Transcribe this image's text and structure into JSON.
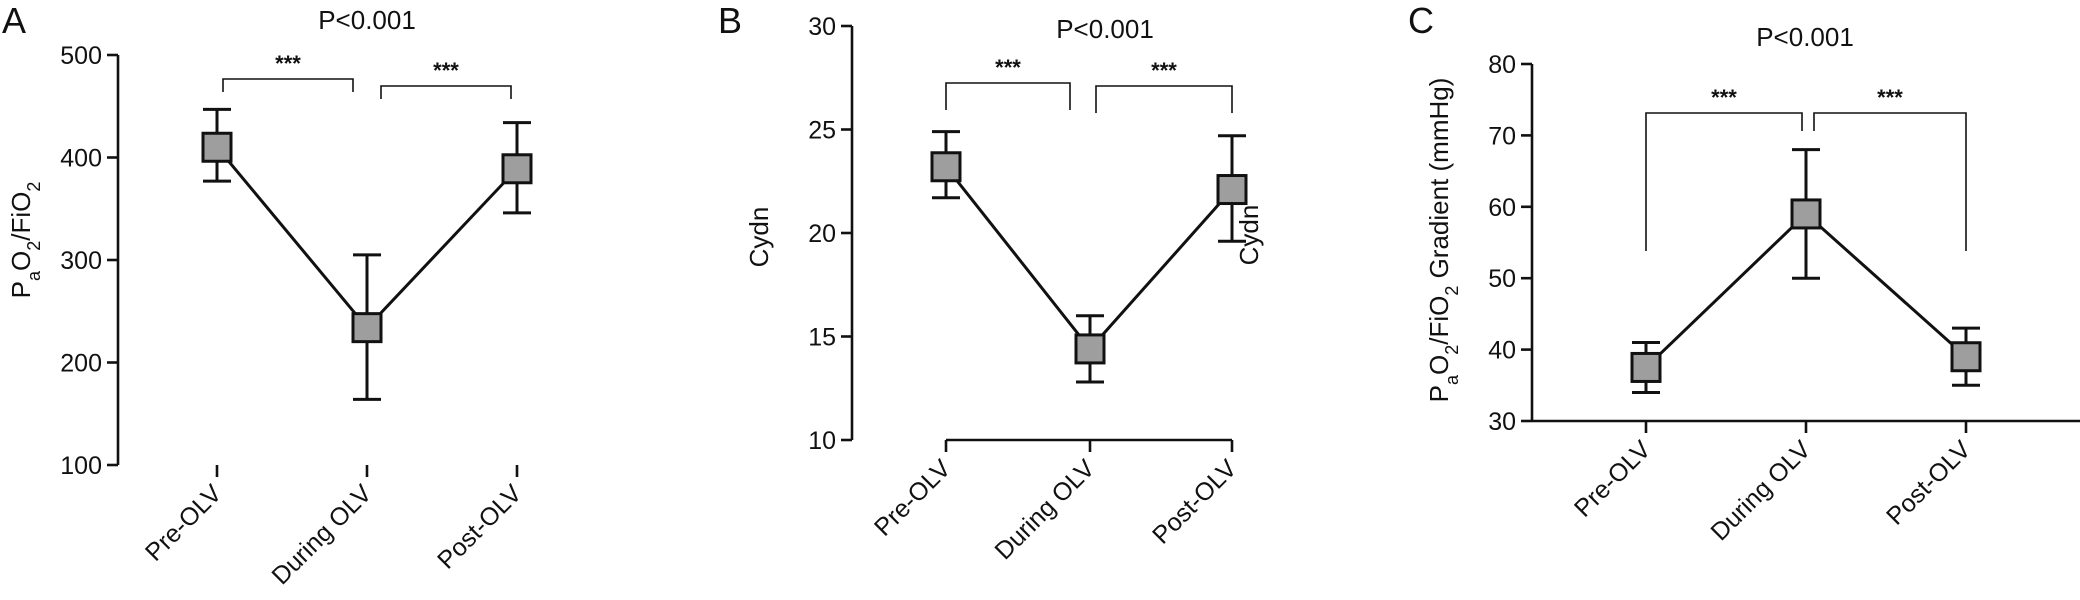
{
  "colors": {
    "marker_fill": "#9e9e9e",
    "stroke": "#111111"
  },
  "chart_data": [
    {
      "panel": "A",
      "type": "line",
      "title": "P<0.001",
      "ylabel": {
        "P": "P",
        "a": "a",
        "O2": "O",
        "sub2": "2",
        "rest": "/FiO",
        "sub2b": "2",
        "tail": ""
      },
      "categories": [
        "Pre-OLV",
        "During OLV",
        "Post-OLV"
      ],
      "yticks": [
        "100",
        "200",
        "300",
        "400",
        "500"
      ],
      "ylim": [
        100,
        500
      ],
      "series": [
        {
          "values": [
            410,
            234,
            389
          ],
          "error_low": [
            377,
            164,
            346
          ],
          "error_high": [
            447,
            305,
            434
          ]
        }
      ],
      "comparisons": [
        {
          "from": 0,
          "to": 1,
          "label": "***"
        },
        {
          "from": 1,
          "to": 2,
          "label": "***"
        }
      ]
    },
    {
      "panel": "B",
      "type": "line",
      "title": "P<0.001",
      "ylabel_text": "Cydn",
      "annotation": "Cydn",
      "categories": [
        "Pre-OLV",
        "During OLV",
        "Post-OLV"
      ],
      "yticks": [
        "10",
        "15",
        "20",
        "25",
        "30"
      ],
      "ylim": [
        10,
        30
      ],
      "series": [
        {
          "values": [
            23.2,
            14.4,
            22.1
          ],
          "error_low": [
            21.7,
            12.8,
            19.6
          ],
          "error_high": [
            24.9,
            16.0,
            24.7
          ]
        }
      ],
      "comparisons": [
        {
          "from": 0,
          "to": 1,
          "label": "***"
        },
        {
          "from": 1,
          "to": 2,
          "label": "***"
        }
      ]
    },
    {
      "panel": "C",
      "type": "line",
      "title": "P<0.001",
      "ylabel": {
        "P": "P",
        "a": "a",
        "O2": "O",
        "sub2": "2",
        "rest": "/FiO",
        "sub2b": "2",
        "tail": " Gradient (mmHg)"
      },
      "categories": [
        "Pre-OLV",
        "During OLV",
        "Post-OLV"
      ],
      "yticks": [
        "30",
        "40",
        "50",
        "60",
        "70",
        "80"
      ],
      "ylim": [
        30,
        80
      ],
      "series": [
        {
          "values": [
            37.5,
            59,
            39
          ],
          "error_low": [
            34,
            50,
            35
          ],
          "error_high": [
            41,
            68,
            43
          ]
        }
      ],
      "comparisons": [
        {
          "from": 0,
          "to": 1,
          "label": "***"
        },
        {
          "from": 1,
          "to": 2,
          "label": "***"
        }
      ]
    }
  ]
}
